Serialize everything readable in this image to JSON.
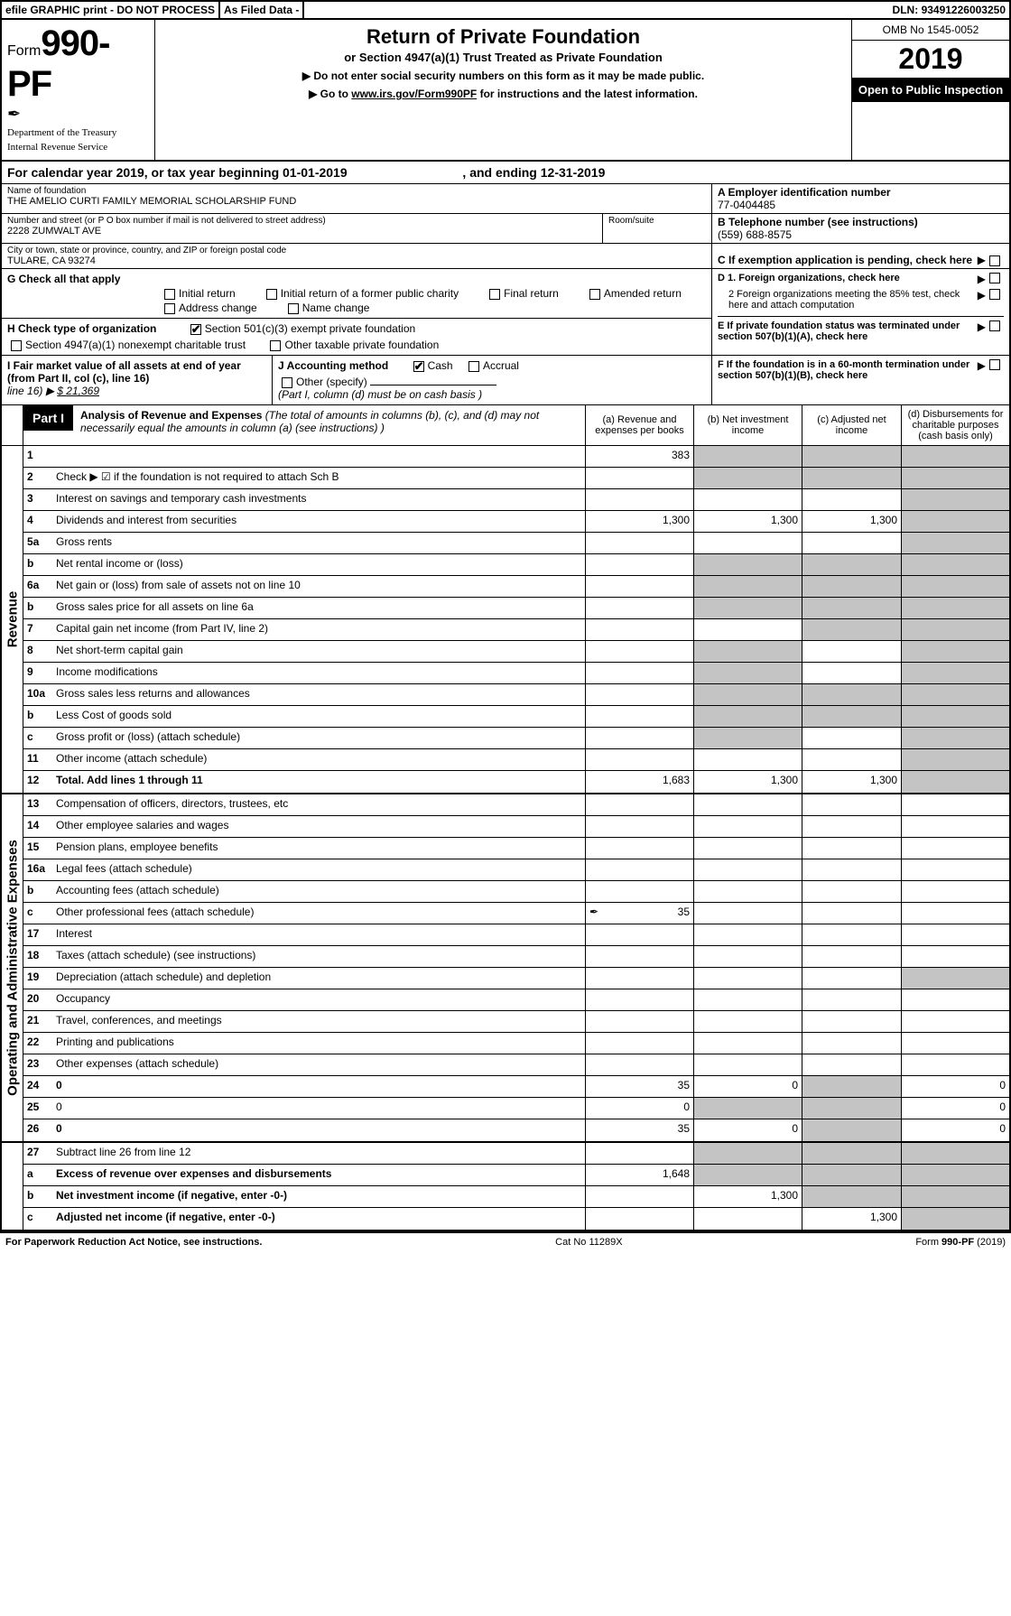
{
  "top": {
    "efile": "efile GRAPHIC print - DO NOT PROCESS",
    "asfiled": "As Filed Data -",
    "dln_label": "DLN:",
    "dln": "93491226003250"
  },
  "header": {
    "form_word": "Form",
    "form_num": "990-PF",
    "dept1": "Department of the Treasury",
    "dept2": "Internal Revenue Service",
    "title": "Return of Private Foundation",
    "subtitle": "or Section 4947(a)(1) Trust Treated as Private Foundation",
    "instr1": "▶ Do not enter social security numbers on this form as it may be made public.",
    "instr2_pre": "▶ Go to ",
    "instr2_link": "www.irs.gov/Form990PF",
    "instr2_post": " for instructions and the latest information.",
    "omb": "OMB No 1545-0052",
    "year": "2019",
    "open": "Open to Public Inspection"
  },
  "cal": {
    "pre": "For calendar year 2019, or tax year beginning ",
    "begin": "01-01-2019",
    "mid": " , and ending ",
    "end": "12-31-2019"
  },
  "name": {
    "label": "Name of foundation",
    "value": "THE AMELIO CURTI FAMILY MEMORIAL SCHOLARSHIP FUND"
  },
  "A": {
    "label": "A Employer identification number",
    "value": "77-0404485"
  },
  "addr": {
    "label": "Number and street (or P O  box number if mail is not delivered to street address)",
    "room": "Room/suite",
    "value": "2228 ZUMWALT AVE"
  },
  "B": {
    "label": "B Telephone number (see instructions)",
    "value": "(559) 688-8575"
  },
  "city": {
    "label": "City or town, state or province, country, and ZIP or foreign postal code",
    "value": "TULARE, CA  93274"
  },
  "C": {
    "label": "C If exemption application is pending, check here"
  },
  "G": {
    "label": "G Check all that apply",
    "o1": "Initial return",
    "o2": "Initial return of a former public charity",
    "o3": "Final return",
    "o4": "Amended return",
    "o5": "Address change",
    "o6": "Name change"
  },
  "D": {
    "l1": "D 1. Foreign organizations, check here",
    "l2": "2 Foreign organizations meeting the 85% test, check here and attach computation"
  },
  "H": {
    "label": "H Check type of organization",
    "o1": "Section 501(c)(3) exempt private foundation",
    "o2": "Section 4947(a)(1) nonexempt charitable trust",
    "o3": "Other taxable private foundation"
  },
  "E": {
    "label": "E  If private foundation status was terminated under section 507(b)(1)(A), check here"
  },
  "I": {
    "label": "I Fair market value of all assets at end of year (from Part II, col  (c), line 16)",
    "arrow": "▶",
    "amt_prefix": "$ ",
    "amt": "21,369"
  },
  "J": {
    "label": "J Accounting method",
    "cash": "Cash",
    "accrual": "Accrual",
    "other": "Other (specify)",
    "note": "(Part I, column (d) must be on cash basis )"
  },
  "F": {
    "label": "F  If the foundation is in a 60-month termination under section 507(b)(1)(B), check here"
  },
  "part1": {
    "label": "Part I",
    "title": "Analysis of Revenue and Expenses",
    "note": " (The total of amounts in columns (b), (c), and (d) may not necessarily equal the amounts in column (a) (see instructions) )",
    "colA": "(a)  Revenue and expenses per books",
    "colB": "(b)  Net investment income",
    "colC": "(c)  Adjusted net income",
    "colD": "(d)  Disbursements for charitable purposes (cash basis only)"
  },
  "rev_label": "Revenue",
  "exp_label": "Operating and Administrative Expenses",
  "rows": {
    "r1": {
      "n": "1",
      "d": "",
      "a": "383",
      "b": "",
      "c": ""
    },
    "r2": {
      "n": "2",
      "d": "Check ▶ ☑ if the foundation is not required to attach Sch  B",
      "dots": true
    },
    "r3": {
      "n": "3",
      "d": "Interest on savings and temporary cash investments"
    },
    "r4": {
      "n": "4",
      "d": "Dividends and interest from securities",
      "dots": true,
      "a": "1,300",
      "b": "1,300",
      "c": "1,300"
    },
    "r5a": {
      "n": "5a",
      "d": "Gross rents",
      "dots": true
    },
    "r5b": {
      "n": "b",
      "d": "Net rental income or (loss)"
    },
    "r6a": {
      "n": "6a",
      "d": "Net gain or (loss) from sale of assets not on line 10"
    },
    "r6b": {
      "n": "b",
      "d": "Gross sales price for all assets on line 6a"
    },
    "r7": {
      "n": "7",
      "d": "Capital gain net income (from Part IV, line 2)",
      "dots": true
    },
    "r8": {
      "n": "8",
      "d": "Net short-term capital gain",
      "dots": true
    },
    "r9": {
      "n": "9",
      "d": "Income modifications",
      "dots": true
    },
    "r10a": {
      "n": "10a",
      "d": "Gross sales less returns and allowances"
    },
    "r10b": {
      "n": "b",
      "d": "Less  Cost of goods sold",
      "dots": true
    },
    "r10c": {
      "n": "c",
      "d": "Gross profit or (loss) (attach schedule)",
      "dots": true
    },
    "r11": {
      "n": "11",
      "d": "Other income (attach schedule)",
      "dots": true
    },
    "r12": {
      "n": "12",
      "d": "Total. Add lines 1 through 11",
      "dots": true,
      "bold": true,
      "a": "1,683",
      "b": "1,300",
      "c": "1,300"
    },
    "r13": {
      "n": "13",
      "d": "Compensation of officers, directors, trustees, etc"
    },
    "r14": {
      "n": "14",
      "d": "Other employee salaries and wages",
      "dots": true
    },
    "r15": {
      "n": "15",
      "d": "Pension plans, employee benefits",
      "dots": true
    },
    "r16a": {
      "n": "16a",
      "d": "Legal fees (attach schedule)",
      "dots": true
    },
    "r16b": {
      "n": "b",
      "d": "Accounting fees (attach schedule)",
      "dots": true
    },
    "r16c": {
      "n": "c",
      "d": "Other professional fees (attach schedule)",
      "dots": true,
      "a": "35",
      "icon": true
    },
    "r17": {
      "n": "17",
      "d": "Interest",
      "dots": true
    },
    "r18": {
      "n": "18",
      "d": "Taxes (attach schedule) (see instructions)",
      "dots": true
    },
    "r19": {
      "n": "19",
      "d": "Depreciation (attach schedule) and depletion",
      "dots": true
    },
    "r20": {
      "n": "20",
      "d": "Occupancy",
      "dots": true
    },
    "r21": {
      "n": "21",
      "d": "Travel, conferences, and meetings",
      "dots": true
    },
    "r22": {
      "n": "22",
      "d": "Printing and publications",
      "dots": true
    },
    "r23": {
      "n": "23",
      "d": "Other expenses (attach schedule)",
      "dots": true
    },
    "r24": {
      "n": "24",
      "d": "0",
      "dots": true,
      "bold": true,
      "a": "35",
      "b": "0"
    },
    "r25": {
      "n": "25",
      "d": "0",
      "dots": true,
      "a": "0"
    },
    "r26": {
      "n": "26",
      "d": "0",
      "bold": true,
      "a": "35",
      "b": "0"
    },
    "r27": {
      "n": "27",
      "d": "Subtract line 26 from line 12"
    },
    "r27a": {
      "n": "a",
      "d": "Excess of revenue over expenses and disbursements",
      "bold": true,
      "a": "1,648"
    },
    "r27b": {
      "n": "b",
      "d": "Net investment income (if negative, enter -0-)",
      "bold": true,
      "b": "1,300"
    },
    "r27c": {
      "n": "c",
      "d": "Adjusted net income (if negative, enter -0-)",
      "bold": true,
      "dots": true,
      "c": "1,300"
    }
  },
  "footer": {
    "left": "For Paperwork Reduction Act Notice, see instructions.",
    "mid": "Cat  No  11289X",
    "right_pre": "Form ",
    "right_bold": "990-PF",
    "right_post": " (2019)"
  }
}
